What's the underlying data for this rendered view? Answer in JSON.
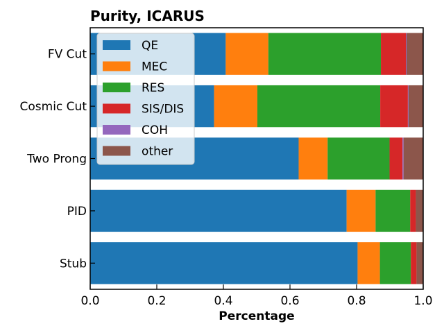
{
  "chart_data": {
    "type": "bar",
    "orientation": "horizontal",
    "stacked": true,
    "title": "Purity, ICARUS",
    "xlabel": "Percentage",
    "ylabel": "",
    "xlim": [
      0,
      1.0
    ],
    "x_ticks": [
      "0.0",
      "0.2",
      "0.4",
      "0.6",
      "0.8",
      "1.0"
    ],
    "categories": [
      "FV Cut",
      "Cosmic Cut",
      "Two Prong",
      "PID",
      "Stub"
    ],
    "series": [
      {
        "name": "QE",
        "color": "#1f77b4",
        "values": [
          0.407,
          0.372,
          0.626,
          0.77,
          0.803
        ]
      },
      {
        "name": "MEC",
        "color": "#ff7f0e",
        "values": [
          0.128,
          0.13,
          0.087,
          0.087,
          0.067
        ]
      },
      {
        "name": "RES",
        "color": "#2ca02c",
        "values": [
          0.338,
          0.369,
          0.186,
          0.104,
          0.093
        ]
      },
      {
        "name": "SIS/DIS",
        "color": "#d62728",
        "values": [
          0.075,
          0.083,
          0.039,
          0.017,
          0.017
        ]
      },
      {
        "name": "COH",
        "color": "#9467bd",
        "values": [
          0.002,
          0.002,
          0.003,
          0.0,
          0.0
        ]
      },
      {
        "name": "other",
        "color": "#8c564b",
        "values": [
          0.05,
          0.044,
          0.059,
          0.022,
          0.02
        ]
      }
    ],
    "legend_position": "top-left",
    "grid": false
  }
}
